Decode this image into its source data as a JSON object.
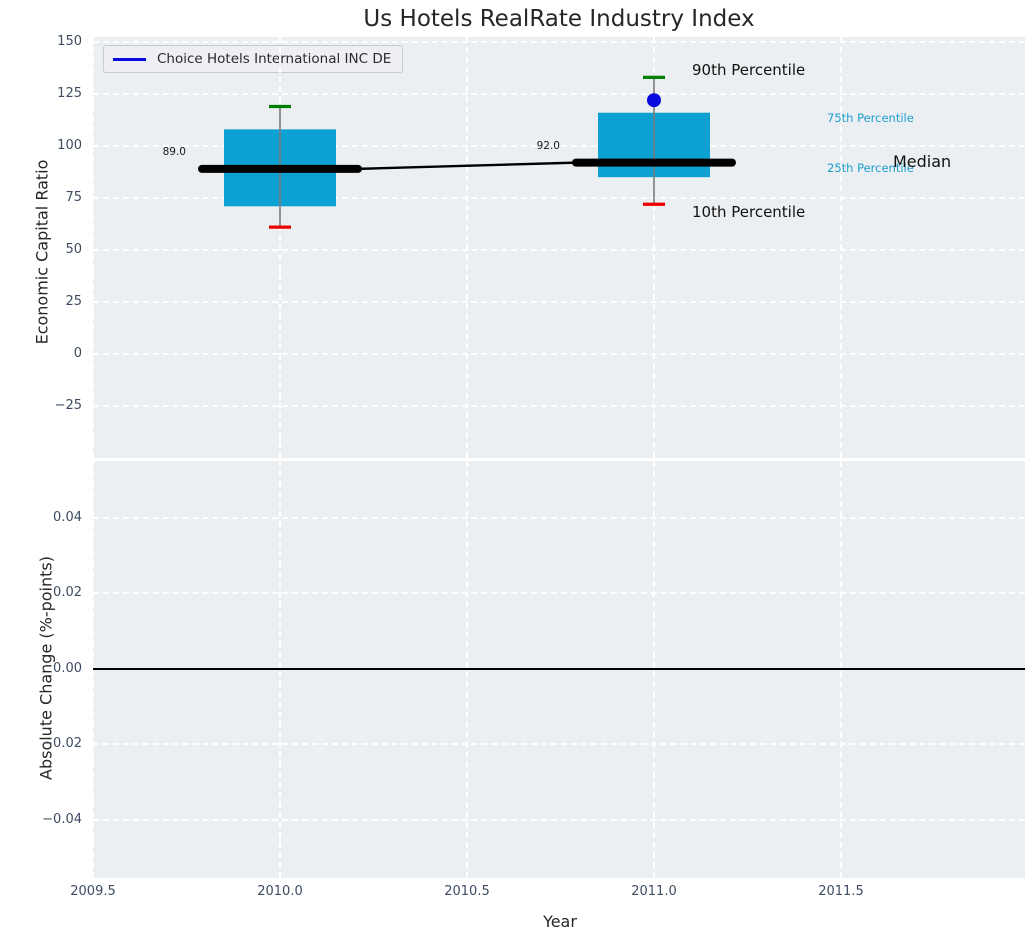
{
  "title": "Us Hotels RealRate Industry Index",
  "legend": {
    "label": "Choice Hotels International INC DE"
  },
  "colors": {
    "figure_bg": "#ffffff",
    "plot_bg": "#eceff1",
    "grid": "#ffffff",
    "box_fill": "#0da0d2",
    "p90_cap": "#008000",
    "p10_cap": "#ee0000",
    "median_line": "#000000",
    "whisker": "#7a7a7a",
    "company_marker": "#0b0bdf",
    "tick_text": "#3e4c62",
    "label_text": "#262626",
    "cyan_text": "#1b9fd0"
  },
  "chart_data": [
    {
      "type": "box",
      "title": "Us Hotels RealRate Industry Index",
      "ylabel": "Economic Capital Ratio",
      "xlabel": "Year",
      "legend_entry": "Choice Hotels International INC DE",
      "ylim": [
        -50.0,
        152.4
      ],
      "xlim": [
        2009.5,
        2011.992
      ],
      "grid": "dashed-white",
      "legend_position": "upper-left",
      "yticks": [
        {
          "v": 150,
          "label": "150"
        },
        {
          "v": 125,
          "label": "125"
        },
        {
          "v": 100,
          "label": "100"
        },
        {
          "v": 75,
          "label": "75"
        },
        {
          "v": 50,
          "label": "50"
        },
        {
          "v": 25,
          "label": "25"
        },
        {
          "v": 0,
          "label": "0"
        },
        {
          "v": -25,
          "label": "−25"
        }
      ],
      "xticks": [
        {
          "v": 2009.5,
          "label": "2009.5"
        },
        {
          "v": 2010.0,
          "label": "2010.0"
        },
        {
          "v": 2010.5,
          "label": "2010.5"
        },
        {
          "v": 2011.0,
          "label": "2011.0"
        },
        {
          "v": 2011.5,
          "label": "2011.5"
        }
      ],
      "boxes": [
        {
          "year": 2010,
          "p10": 61,
          "q1": 71,
          "median": 89,
          "q3": 108,
          "p90": 119,
          "median_label": "89.0"
        },
        {
          "year": 2011,
          "p10": 72,
          "q1": 85,
          "median": 92,
          "q3": 116,
          "p90": 133,
          "median_label": "92.0",
          "company_value": 122
        }
      ],
      "median_trend": [
        {
          "x": 2010,
          "y": 89
        },
        {
          "x": 2011,
          "y": 92
        }
      ],
      "annotations": [
        {
          "id": "p90",
          "text": "90th Percentile"
        },
        {
          "id": "p10",
          "text": "10th Percentile"
        },
        {
          "id": "p75",
          "text": "75th Percentile"
        },
        {
          "id": "p25",
          "text": "25th Percentile"
        },
        {
          "id": "med",
          "text": "Median"
        }
      ]
    },
    {
      "type": "line",
      "ylabel": "Absolute Change (%-points)",
      "xlabel": "Year",
      "ylim": [
        -0.0554,
        0.0551
      ],
      "xlim": [
        2009.5,
        2011.992
      ],
      "grid": "dashed-white",
      "yticks": [
        {
          "v": 0.04,
          "label": "0.04"
        },
        {
          "v": 0.02,
          "label": "0.02"
        },
        {
          "v": 0.0,
          "label": "0.00"
        },
        {
          "v": -0.02,
          "label": "−0.02"
        },
        {
          "v": -0.04,
          "label": "−0.04"
        }
      ],
      "xticks": [
        {
          "v": 2009.5,
          "label": "2009.5"
        },
        {
          "v": 2010.0,
          "label": "2010.0"
        },
        {
          "v": 2010.5,
          "label": "2010.5"
        },
        {
          "v": 2011.0,
          "label": "2011.0"
        },
        {
          "v": 2011.5,
          "label": "2011.5"
        }
      ],
      "zero_line": 0.0,
      "series": []
    }
  ]
}
